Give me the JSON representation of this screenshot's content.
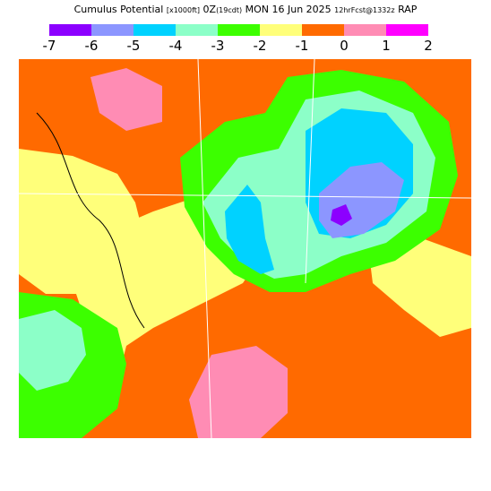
{
  "title": {
    "main_left": "Cumulus Potential",
    "unit": "[x1000ft]",
    "hour": "0Z",
    "local": "(19cdt)",
    "date": "MON 16 Jun 2025",
    "init": "12hrFcst@1332z",
    "model": "RAP"
  },
  "legend": {
    "tick_labels": [
      "-7",
      "-6",
      "-5",
      "-4",
      "-3",
      "-2",
      "-1",
      "0",
      "1",
      "2"
    ],
    "colors": [
      "#8c00ff",
      "#8c96ff",
      "#00d2ff",
      "#8cffc8",
      "#3cff00",
      "#ffff7a",
      "#ff6a00",
      "#ff8cb4",
      "#ff00ff"
    ],
    "bins": [
      "-7 to -6",
      "-6 to -5",
      "-5 to -4",
      "-4 to -3",
      "-3 to -2",
      "-2 to -1",
      "-1 to 0",
      "0 to 1",
      "1 to 2"
    ]
  },
  "map": {
    "background_category": "-1 to 0",
    "regions": [
      {
        "name": "yellow-west-band",
        "category": "-2 to -1"
      },
      {
        "name": "yellow-central-belt",
        "category": "-2 to -1"
      },
      {
        "name": "yellow-east",
        "category": "-2 to -1"
      },
      {
        "name": "green-lake-region",
        "category": "-3 to -2"
      },
      {
        "name": "green-southwest",
        "category": "-3 to -2"
      },
      {
        "name": "teal-lake-region",
        "category": "-4 to -3"
      },
      {
        "name": "teal-southwest",
        "category": "-4 to -3"
      },
      {
        "name": "cyan-lake-michigan-east",
        "category": "-5 to -4"
      },
      {
        "name": "cyan-lake-michigan-west",
        "category": "-5 to -4"
      },
      {
        "name": "lavender-lake-region",
        "category": "-6 to -5"
      },
      {
        "name": "purple-lake-region",
        "category": "-7 to -6"
      },
      {
        "name": "pink-north",
        "category": "0 to 1"
      },
      {
        "name": "pink-south",
        "category": "0 to 1"
      }
    ]
  }
}
